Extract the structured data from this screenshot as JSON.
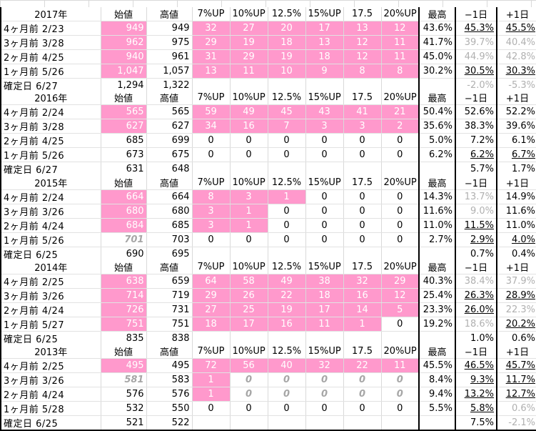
{
  "headers": [
    "始値",
    "高値",
    "7%UP",
    "10%UP",
    "12.5%",
    "15%UP",
    "17.5",
    "20%UP",
    "最高",
    "−1日",
    "+1日"
  ],
  "blocks": [
    {
      "year": "2017年",
      "rows": [
        {
          "label": "4ヶ月前 2/23",
          "cells": [
            "949",
            "949",
            "32",
            "27",
            "20",
            "17",
            "13",
            "12",
            "43.6%",
            "45.3%",
            "45.5%"
          ],
          "pink": [
            0,
            2,
            3,
            4,
            5,
            6,
            7
          ],
          "gray": [],
          "gital": [],
          "ul": [
            9,
            10
          ]
        },
        {
          "label": "3ヶ月前 3/28",
          "cells": [
            "962",
            "975",
            "29",
            "19",
            "18",
            "13",
            "12",
            "11",
            "41.7%",
            "39.7%",
            "40.4%"
          ],
          "pink": [
            0,
            2,
            3,
            4,
            5,
            6,
            7
          ],
          "gray": [
            9,
            10
          ],
          "gital": [],
          "ul": []
        },
        {
          "label": "2ヶ月前 4/25",
          "cells": [
            "940",
            "961",
            "31",
            "29",
            "19",
            "18",
            "12",
            "11",
            "45.0%",
            "44.9%",
            "42.8%"
          ],
          "pink": [
            0,
            2,
            3,
            4,
            5,
            6,
            7
          ],
          "gray": [
            9,
            10
          ],
          "gital": [],
          "ul": []
        },
        {
          "label": "1ヶ月前 5/26",
          "cells": [
            "1,047",
            "1,057",
            "13",
            "11",
            "10",
            "9",
            "8",
            "8",
            "30.2%",
            "30.5%",
            "30.3%"
          ],
          "pink": [
            0,
            2,
            3,
            4,
            5,
            6,
            7
          ],
          "gray": [],
          "gital": [],
          "ul": [
            9,
            10
          ]
        },
        {
          "label": "確定日 6/27",
          "cells": [
            "1,294",
            "1,322",
            "",
            "",
            "",
            "",
            "",
            "",
            "",
            "-2.0%",
            "-5.3%"
          ],
          "pink": [],
          "gray": [
            9,
            10
          ],
          "gital": [],
          "ul": []
        }
      ]
    },
    {
      "year": "2016年",
      "rows": [
        {
          "label": "4ヶ月前 2/24",
          "cells": [
            "565",
            "565",
            "59",
            "49",
            "45",
            "43",
            "41",
            "21",
            "50.4%",
            "52.6%",
            "52.2%"
          ],
          "pink": [
            0,
            2,
            3,
            4,
            5,
            6,
            7
          ],
          "gray": [],
          "gital": [],
          "ul": []
        },
        {
          "label": "3ヶ月前 3/28",
          "cells": [
            "627",
            "627",
            "34",
            "16",
            "7",
            "3",
            "3",
            "2",
            "35.6%",
            "38.3%",
            "39.6%"
          ],
          "pink": [
            0,
            2,
            3,
            4,
            5,
            6,
            7
          ],
          "gray": [],
          "gital": [],
          "ul": []
        },
        {
          "label": "2ヶ月前 4/25",
          "cells": [
            "685",
            "699",
            "0",
            "0",
            "0",
            "0",
            "0",
            "0",
            "5.0%",
            "7.2%",
            "6.1%"
          ],
          "pink": [],
          "gray": [],
          "gital": [],
          "ul": []
        },
        {
          "label": "1ヶ月前 5/26",
          "cells": [
            "673",
            "675",
            "0",
            "0",
            "0",
            "0",
            "0",
            "0",
            "6.2%",
            "6.2%",
            "6.7%"
          ],
          "pink": [],
          "gray": [],
          "gital": [],
          "ul": [
            9,
            10
          ]
        },
        {
          "label": "確定日 6/27",
          "cells": [
            "631",
            "648",
            "",
            "",
            "",
            "",
            "",
            "",
            "",
            "5.7%",
            "1.7%"
          ],
          "pink": [],
          "gray": [],
          "gital": [],
          "ul": []
        }
      ]
    },
    {
      "year": "2015年",
      "rows": [
        {
          "label": "4ヶ月前 2/24",
          "cells": [
            "664",
            "664",
            "8",
            "3",
            "1",
            "0",
            "0",
            "0",
            "14.3%",
            "13.7%",
            "14.9%"
          ],
          "pink": [
            0,
            2,
            3,
            4
          ],
          "gray": [
            9
          ],
          "gital": [],
          "ul": []
        },
        {
          "label": "3ヶ月前 3/26",
          "cells": [
            "680",
            "680",
            "3",
            "1",
            "0",
            "0",
            "0",
            "0",
            "11.6%",
            "9.0%",
            "11.6%"
          ],
          "pink": [
            0,
            2,
            3
          ],
          "gray": [
            9
          ],
          "gital": [],
          "ul": []
        },
        {
          "label": "2ヶ月前 4/24",
          "cells": [
            "684",
            "685",
            "3",
            "1",
            "0",
            "0",
            "0",
            "0",
            "11.0%",
            "11.5%",
            "11.0%"
          ],
          "pink": [
            0,
            2,
            3
          ],
          "gray": [],
          "gital": [],
          "ul": [
            9
          ]
        },
        {
          "label": "1ヶ月前 5/26",
          "cells": [
            "701",
            "703",
            "0",
            "0",
            "0",
            "0",
            "0",
            "0",
            "2.7%",
            "2.9%",
            "4.0%"
          ],
          "pink": [],
          "gray": [],
          "gital": [
            0
          ],
          "ul": [
            9,
            10
          ]
        },
        {
          "label": "確定日 6/25",
          "cells": [
            "690",
            "695",
            "",
            "",
            "",
            "",
            "",
            "",
            "",
            "0.7%",
            "0.4%"
          ],
          "pink": [],
          "gray": [],
          "gital": [],
          "ul": []
        }
      ]
    },
    {
      "year": "2014年",
      "rows": [
        {
          "label": "4ヶ月前 2/25",
          "cells": [
            "638",
            "659",
            "64",
            "58",
            "49",
            "38",
            "32",
            "29",
            "40.3%",
            "38.4%",
            "37.9%"
          ],
          "pink": [
            0,
            2,
            3,
            4,
            5,
            6,
            7
          ],
          "gray": [
            9,
            10
          ],
          "gital": [],
          "ul": []
        },
        {
          "label": "3ヶ月前 3/26",
          "cells": [
            "714",
            "719",
            "29",
            "26",
            "22",
            "18",
            "16",
            "12",
            "25.4%",
            "26.3%",
            "28.9%"
          ],
          "pink": [
            0,
            2,
            3,
            4,
            5,
            6,
            7
          ],
          "gray": [],
          "gital": [],
          "ul": [
            9,
            10
          ]
        },
        {
          "label": "2ヶ月前 4/24",
          "cells": [
            "726",
            "731",
            "27",
            "25",
            "19",
            "17",
            "14",
            "5",
            "23.3%",
            "26.0%",
            "22.3%"
          ],
          "pink": [
            0,
            2,
            3,
            4,
            5,
            6,
            7
          ],
          "gray": [
            10
          ],
          "gital": [],
          "ul": [
            9
          ]
        },
        {
          "label": "1ヶ月前 5/27",
          "cells": [
            "751",
            "751",
            "18",
            "17",
            "16",
            "11",
            "1",
            "0",
            "19.2%",
            "18.6%",
            "20.2%"
          ],
          "pink": [
            0,
            2,
            3,
            4,
            5,
            6
          ],
          "gray": [
            9
          ],
          "gital": [],
          "ul": [
            10
          ]
        },
        {
          "label": "確定日 6/25",
          "cells": [
            "835",
            "838",
            "",
            "",
            "",
            "",
            "",
            "",
            "",
            "1.0%",
            "0.6%"
          ],
          "pink": [],
          "gray": [],
          "gital": [],
          "ul": []
        }
      ]
    },
    {
      "year": "2013年",
      "rows": [
        {
          "label": "4ヶ月前 2/25",
          "cells": [
            "495",
            "495",
            "72",
            "56",
            "40",
            "32",
            "22",
            "11",
            "45.5%",
            "46.5%",
            "45.7%"
          ],
          "pink": [
            0,
            2,
            3,
            4,
            5,
            6,
            7
          ],
          "gray": [],
          "gital": [],
          "ul": [
            9,
            10
          ]
        },
        {
          "label": "3ヶ月前 3/26",
          "cells": [
            "581",
            "583",
            "1",
            "0",
            "0",
            "0",
            "0",
            "0",
            "8.4%",
            "9.3%",
            "11.7%"
          ],
          "pink": [
            2
          ],
          "gray": [],
          "gital": [
            0,
            3,
            4,
            5,
            6,
            7
          ],
          "ul": [
            9,
            10
          ]
        },
        {
          "label": "2ヶ月前 4/24",
          "cells": [
            "576",
            "576",
            "1",
            "0",
            "0",
            "0",
            "0",
            "0",
            "9.4%",
            "13.2%",
            "12.7%"
          ],
          "pink": [
            2
          ],
          "gray": [],
          "gital": [
            3,
            4,
            5,
            6,
            7
          ],
          "ul": [
            9,
            10
          ]
        },
        {
          "label": "1ヶ月前 5/28",
          "cells": [
            "532",
            "550",
            "0",
            "0",
            "0",
            "0",
            "0",
            "0",
            "5.5%",
            "5.8%",
            "0.6%"
          ],
          "pink": [],
          "gray": [
            10
          ],
          "gital": [],
          "ul": [
            9
          ]
        },
        {
          "label": "確定日 6/25",
          "cells": [
            "521",
            "522",
            "",
            "",
            "",
            "",
            "",
            "",
            "",
            "7.5%",
            "-2.1%"
          ],
          "pink": [],
          "gray": [
            10
          ],
          "gital": [],
          "ul": []
        }
      ]
    }
  ]
}
